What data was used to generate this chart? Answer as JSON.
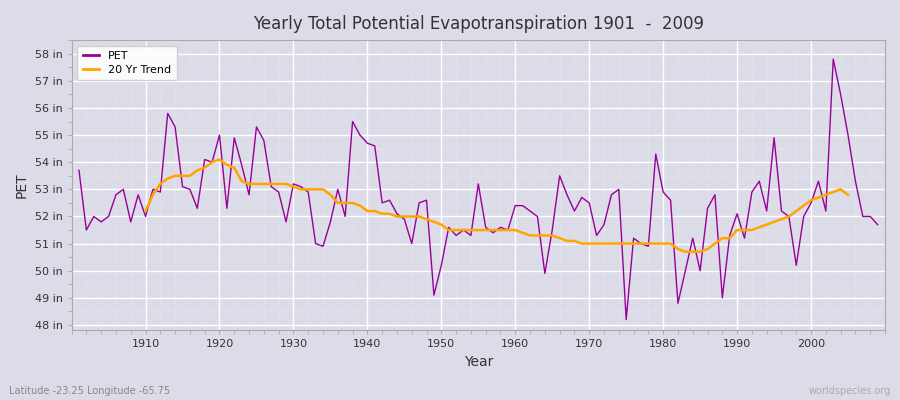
{
  "title": "Yearly Total Potential Evapotranspiration 1901  -  2009",
  "xlabel": "Year",
  "ylabel": "PET",
  "subtitle": "Latitude -23.25 Longitude -65.75",
  "watermark": "worldspecies.org",
  "pet_color": "#990099",
  "trend_color": "#ffa500",
  "bg_color": "#dcdce8",
  "ylim": [
    47.8,
    58.5
  ],
  "xlim": [
    1900,
    2010
  ],
  "ytick_labels": [
    "48 in",
    "49 in",
    "50 in",
    "51 in",
    "52 in",
    "53 in",
    "54 in",
    "55 in",
    "56 in",
    "57 in",
    "58 in"
  ],
  "ytick_values": [
    48,
    49,
    50,
    51,
    52,
    53,
    54,
    55,
    56,
    57,
    58
  ],
  "xtick_values": [
    1910,
    1920,
    1930,
    1940,
    1950,
    1960,
    1970,
    1980,
    1990,
    2000
  ],
  "years": [
    1901,
    1902,
    1903,
    1904,
    1905,
    1906,
    1907,
    1908,
    1909,
    1910,
    1911,
    1912,
    1913,
    1914,
    1915,
    1916,
    1917,
    1918,
    1919,
    1920,
    1921,
    1922,
    1923,
    1924,
    1925,
    1926,
    1927,
    1928,
    1929,
    1930,
    1931,
    1932,
    1933,
    1934,
    1935,
    1936,
    1937,
    1938,
    1939,
    1940,
    1941,
    1942,
    1943,
    1944,
    1945,
    1946,
    1947,
    1948,
    1949,
    1950,
    1951,
    1952,
    1953,
    1954,
    1955,
    1956,
    1957,
    1958,
    1959,
    1960,
    1961,
    1962,
    1963,
    1964,
    1965,
    1966,
    1967,
    1968,
    1969,
    1970,
    1971,
    1972,
    1973,
    1974,
    1975,
    1976,
    1977,
    1978,
    1979,
    1980,
    1981,
    1982,
    1983,
    1984,
    1985,
    1986,
    1987,
    1988,
    1989,
    1990,
    1991,
    1992,
    1993,
    1994,
    1995,
    1996,
    1997,
    1998,
    1999,
    2000,
    2001,
    2002,
    2003,
    2004,
    2005,
    2006,
    2007,
    2008,
    2009
  ],
  "pet_values": [
    53.7,
    51.5,
    52.0,
    51.8,
    52.0,
    52.8,
    53.0,
    51.8,
    52.8,
    52.0,
    53.0,
    52.9,
    55.8,
    55.3,
    53.1,
    53.0,
    52.3,
    54.1,
    54.0,
    55.0,
    52.3,
    54.9,
    53.9,
    52.8,
    55.3,
    54.8,
    53.1,
    52.9,
    51.8,
    53.2,
    53.1,
    52.9,
    51.0,
    50.9,
    51.8,
    53.0,
    52.0,
    55.5,
    55.0,
    54.7,
    54.6,
    52.5,
    52.6,
    52.1,
    51.9,
    51.0,
    52.5,
    52.6,
    49.1,
    50.2,
    51.6,
    51.3,
    51.5,
    51.3,
    53.2,
    51.6,
    51.4,
    51.6,
    51.5,
    52.4,
    52.4,
    52.2,
    52.0,
    49.9,
    51.5,
    53.5,
    52.8,
    52.2,
    52.7,
    52.5,
    51.3,
    51.7,
    52.8,
    53.0,
    48.2,
    51.2,
    51.0,
    50.9,
    54.3,
    52.9,
    52.6,
    48.8,
    50.0,
    51.2,
    50.0,
    52.3,
    52.8,
    49.0,
    51.3,
    52.1,
    51.2,
    52.9,
    53.3,
    52.2,
    54.9,
    52.2,
    52.0,
    50.2,
    52.0,
    52.5,
    53.3,
    52.2,
    57.8,
    56.5,
    55.0,
    53.3,
    52.0,
    52.0,
    51.7
  ],
  "trend_years": [
    1910,
    1911,
    1912,
    1913,
    1914,
    1915,
    1916,
    1917,
    1918,
    1919,
    1920,
    1921,
    1922,
    1923,
    1924,
    1925,
    1926,
    1927,
    1928,
    1929,
    1930,
    1931,
    1932,
    1933,
    1934,
    1935,
    1936,
    1937,
    1938,
    1939,
    1940,
    1941,
    1942,
    1943,
    1944,
    1945,
    1946,
    1947,
    1948,
    1949,
    1950,
    1951,
    1952,
    1953,
    1954,
    1955,
    1956,
    1957,
    1958,
    1959,
    1960,
    1961,
    1962,
    1963,
    1964,
    1965,
    1966,
    1967,
    1968,
    1969,
    1970,
    1971,
    1972,
    1973,
    1974,
    1975,
    1976,
    1977,
    1978,
    1979,
    1980,
    1981,
    1982,
    1983,
    1984,
    1985,
    1986,
    1987,
    1988,
    1989,
    1990,
    1991,
    1992,
    1993,
    1994,
    1995,
    1996,
    1997,
    1998,
    1999,
    2000,
    2001,
    2002,
    2003,
    2004,
    2005
  ],
  "trend_values": [
    52.2,
    52.8,
    53.2,
    53.4,
    53.5,
    53.5,
    53.5,
    53.7,
    53.8,
    54.0,
    54.1,
    53.9,
    53.8,
    53.3,
    53.2,
    53.2,
    53.2,
    53.2,
    53.2,
    53.2,
    53.1,
    53.0,
    53.0,
    53.0,
    53.0,
    52.8,
    52.5,
    52.5,
    52.5,
    52.4,
    52.2,
    52.2,
    52.1,
    52.1,
    52.0,
    52.0,
    52.0,
    52.0,
    51.9,
    51.8,
    51.7,
    51.5,
    51.5,
    51.5,
    51.5,
    51.5,
    51.5,
    51.5,
    51.5,
    51.5,
    51.5,
    51.4,
    51.3,
    51.3,
    51.3,
    51.3,
    51.2,
    51.1,
    51.1,
    51.0,
    51.0,
    51.0,
    51.0,
    51.0,
    51.0,
    51.0,
    51.0,
    51.0,
    51.0,
    51.0,
    51.0,
    51.0,
    50.8,
    50.7,
    50.7,
    50.7,
    50.8,
    51.0,
    51.2,
    51.2,
    51.5,
    51.5,
    51.5,
    51.6,
    51.7,
    51.8,
    51.9,
    52.0,
    52.2,
    52.4,
    52.6,
    52.7,
    52.8,
    52.9,
    53.0,
    52.8
  ]
}
